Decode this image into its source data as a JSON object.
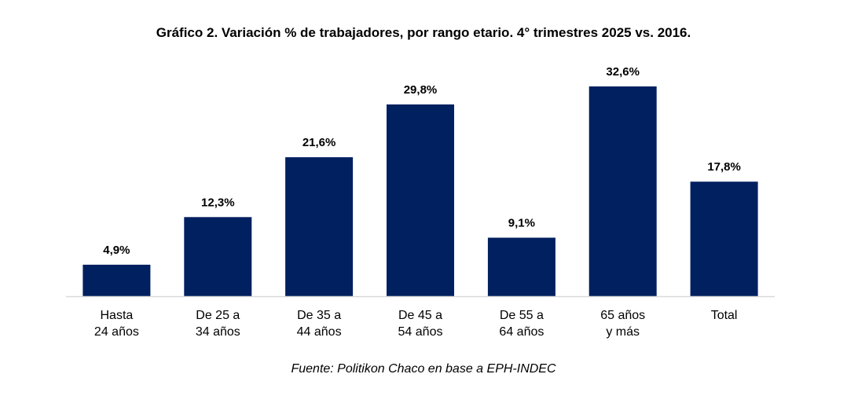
{
  "chart_data": {
    "type": "bar",
    "title": "Gráfico 2. Variación % de trabajadores, por rango etario. 4° trimestres 2025 vs. 2016.",
    "categories": [
      [
        "Hasta",
        "24 años"
      ],
      [
        "De 25 a",
        "34 años"
      ],
      [
        "De 35 a",
        "44 años"
      ],
      [
        "De 45 a",
        "54 años"
      ],
      [
        "De 55 a",
        "64 años"
      ],
      [
        "65 años",
        "y más"
      ],
      [
        "Total"
      ]
    ],
    "values": [
      4.9,
      12.3,
      21.6,
      29.8,
      9.1,
      32.6,
      17.8
    ],
    "data_labels": [
      "4,9%",
      "12,3%",
      "21,6%",
      "29,8%",
      "9,1%",
      "32,6%",
      "17,8%"
    ],
    "ylim": [
      0,
      32.6
    ],
    "grid": false,
    "legend": "none",
    "bar_color": "#002060",
    "axis_color": "#d9d9d9",
    "source": "Fuente: Politikon Chaco en base a EPH-INDEC"
  }
}
